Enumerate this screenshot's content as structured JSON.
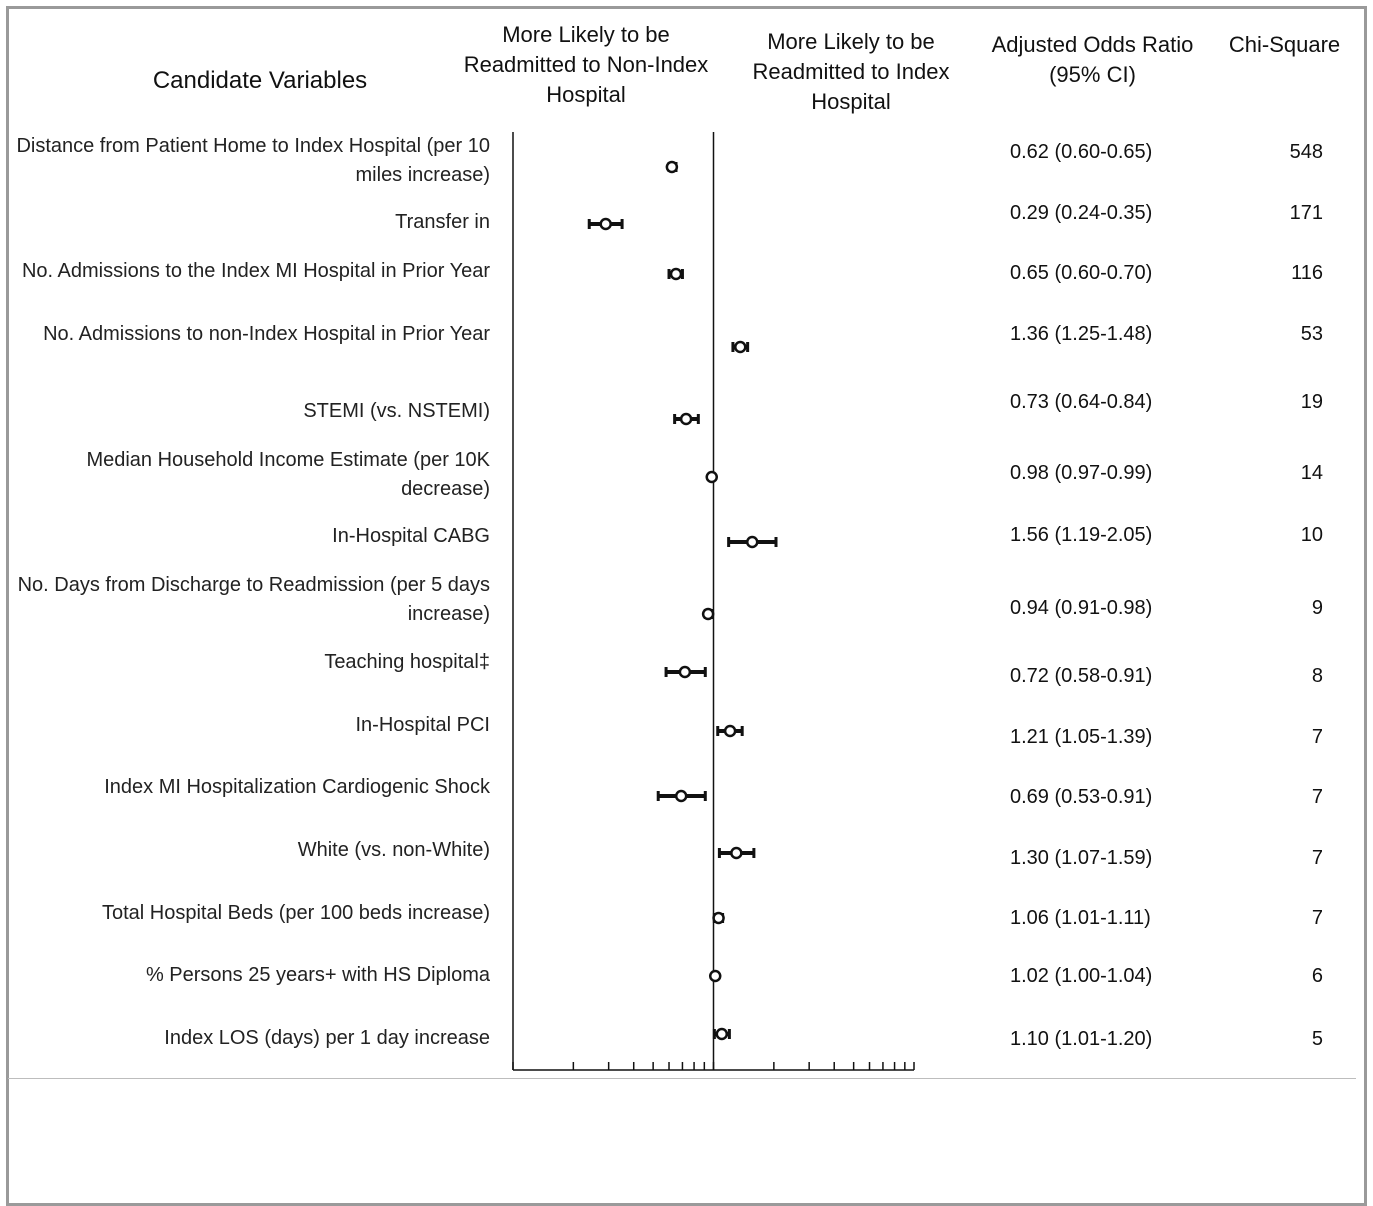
{
  "headers": {
    "candidate": "Candidate Variables",
    "left": "More Likely to be\nReadmitted to Non-Index\nHospital",
    "right": "More Likely to be\nReadmitted to Index\nHospital",
    "aor": "Adjusted Odds Ratio\n(95% CI)",
    "chi": "Chi-Square"
  },
  "rows": [
    {
      "label": "Distance from Patient Home to Index Hospital (per 10 miles increase)",
      "or_text": "0.62 (0.60-0.65)",
      "chi": "548"
    },
    {
      "label": "Transfer in",
      "or_text": "0.29 (0.24-0.35)",
      "chi": "171"
    },
    {
      "label": "No. Admissions to the Index MI Hospital in Prior Year",
      "or_text": "0.65 (0.60-0.70)",
      "chi": "116"
    },
    {
      "label": "No. Admissions to non-Index Hospital in Prior Year",
      "or_text": "1.36 (1.25-1.48)",
      "chi": "53"
    },
    {
      "label": "STEMI (vs. NSTEMI)",
      "or_text": "0.73 (0.64-0.84)",
      "chi": "19"
    },
    {
      "label": "Median Household Income Estimate (per 10K decrease)",
      "or_text": "0.98 (0.97-0.99)",
      "chi": "14"
    },
    {
      "label": "In-Hospital CABG",
      "or_text": "1.56 (1.19-2.05)",
      "chi": "10"
    },
    {
      "label": "No. Days from Discharge to Readmission (per 5 days increase)",
      "or_text": "0.94 (0.91-0.98)",
      "chi": "9"
    },
    {
      "label": "Teaching hospital‡",
      "or_text": "0.72 (0.58-0.91)",
      "chi": "8"
    },
    {
      "label": "In-Hospital PCI",
      "or_text": "1.21 (1.05-1.39)",
      "chi": "7"
    },
    {
      "label": "Index MI Hospitalization Cardiogenic Shock",
      "or_text": "0.69 (0.53-0.91)",
      "chi": "7"
    },
    {
      "label": "White (vs. non-White)",
      "or_text": "1.30 (1.07-1.59)",
      "chi": "7"
    },
    {
      "label": "Total Hospital Beds (per 100 beds increase)",
      "or_text": "1.06 (1.01-1.11)",
      "chi": "7"
    },
    {
      "label": "% Persons 25 years+ with HS Diploma",
      "or_text": "1.02 (1.00-1.04)",
      "chi": "6"
    },
    {
      "label": "Index LOS (days) per 1 day increase",
      "or_text": "1.10 (1.01-1.20)",
      "chi": "5"
    }
  ],
  "chart_data": {
    "type": "scatter",
    "subtype": "forest-plot",
    "x_scale": "log",
    "xlim": [
      0.1,
      10
    ],
    "reference_line": 1,
    "categories": [
      "Distance from Patient Home to Index Hospital (per 10 miles increase)",
      "Transfer in",
      "No. Admissions to the Index MI Hospital in Prior Year",
      "No. Admissions to non-Index Hospital in Prior Year",
      "STEMI (vs. NSTEMI)",
      "Median Household Income Estimate (per 10K decrease)",
      "In-Hospital CABG",
      "No. Days from Discharge to Readmission (per 5 days increase)",
      "Teaching hospital‡",
      "In-Hospital PCI",
      "Index MI Hospitalization Cardiogenic Shock",
      "White (vs. non-White)",
      "Total Hospital Beds (per 100 beds increase)",
      "% Persons 25 years+ with HS Diploma",
      "Index LOS (days) per 1 day increase"
    ],
    "odds_ratio": [
      0.62,
      0.29,
      0.65,
      1.36,
      0.73,
      0.98,
      1.56,
      0.94,
      0.72,
      1.21,
      0.69,
      1.3,
      1.06,
      1.02,
      1.1
    ],
    "ci_lower": [
      0.6,
      0.24,
      0.6,
      1.25,
      0.64,
      0.97,
      1.19,
      0.91,
      0.58,
      1.05,
      0.53,
      1.07,
      1.01,
      1.0,
      1.01
    ],
    "ci_upper": [
      0.65,
      0.35,
      0.7,
      1.48,
      0.84,
      0.99,
      2.05,
      0.98,
      0.91,
      1.39,
      0.91,
      1.59,
      1.11,
      1.04,
      1.2
    ],
    "chi_square": [
      548,
      171,
      116,
      53,
      19,
      14,
      10,
      9,
      8,
      7,
      7,
      7,
      7,
      6,
      5
    ],
    "grid": false
  }
}
